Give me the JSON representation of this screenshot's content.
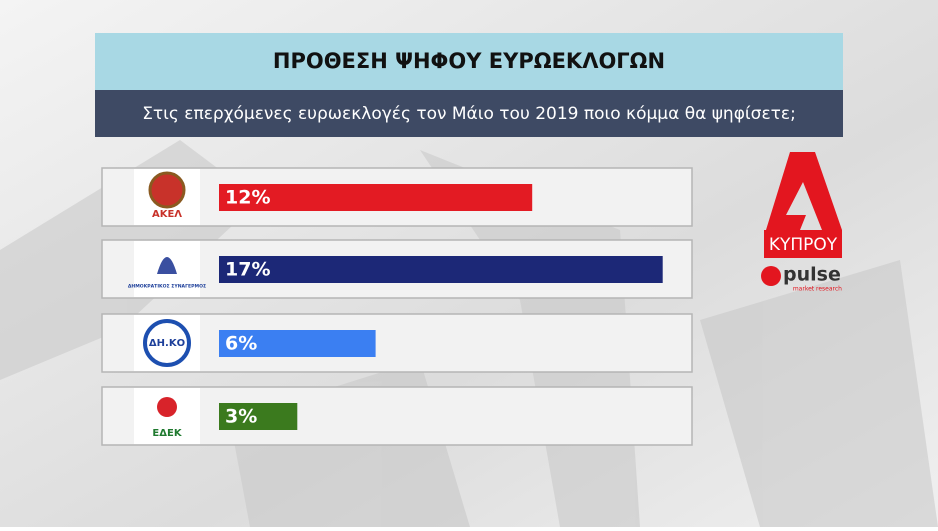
{
  "chart_data": {
    "type": "bar",
    "orientation": "horizontal",
    "title": "ΠΡΟΘΕΣΗ ΨΗΦΟΥ ΕΥΡΩΕΚΛΟΓΩΝ",
    "subtitle": "Στις επερχόμενες ευρωεκλογές τον Μάιο του 2019 ποιο κόμμα θα ψηφίσετε;",
    "categories": [
      "ΑΚΕΛ",
      "ΔΗΜΟΚΡΑΤΙΚΟΣ ΣΥΝΑΓΕΡΜΟΣ",
      "ΔΗ.ΚΟ",
      "ΕΔΕΚ"
    ],
    "values": [
      12,
      17,
      6,
      3
    ],
    "value_labels": [
      "12%",
      "17%",
      "6%",
      "3%"
    ],
    "colors": [
      "#e31b23",
      "#1c2877",
      "#3b7ff2",
      "#3b7a1e"
    ]
  },
  "branding": {
    "channel": "ΚΥΠΡΟΥ",
    "pollster": "pulse",
    "pollster_tagline": "market research"
  }
}
